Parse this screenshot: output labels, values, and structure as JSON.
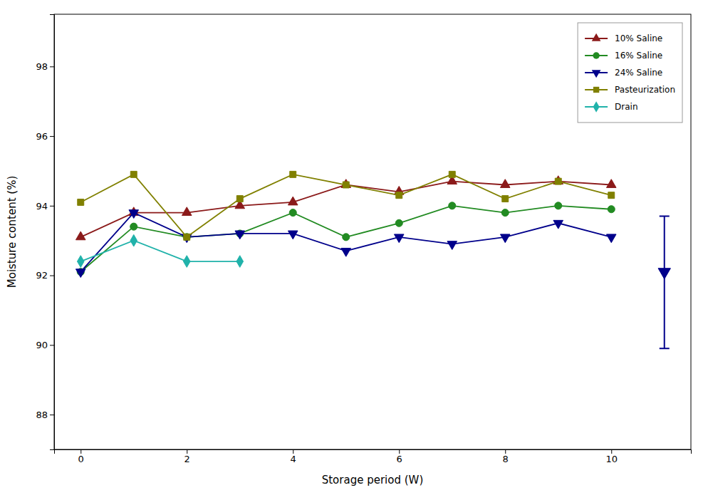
{
  "chart_data": {
    "type": "line",
    "x": [
      0,
      1,
      2,
      3,
      4,
      5,
      6,
      7,
      8,
      9,
      10
    ],
    "series": [
      {
        "name": "10% Saline",
        "color": "#8B1A1A",
        "marker": "triangle-up",
        "values": [
          93.1,
          93.8,
          93.8,
          94.0,
          94.1,
          94.6,
          94.4,
          94.7,
          94.6,
          94.7,
          94.6
        ]
      },
      {
        "name": "16% Saline",
        "color": "#228B22",
        "marker": "circle",
        "values": [
          92.1,
          93.4,
          93.1,
          93.2,
          93.8,
          93.1,
          93.5,
          94.0,
          93.8,
          94.0,
          93.9
        ]
      },
      {
        "name": "24% Saline",
        "color": "#00008B",
        "marker": "triangle-down",
        "values": [
          92.1,
          93.8,
          93.1,
          93.2,
          93.2,
          92.7,
          93.1,
          92.9,
          93.1,
          93.5,
          93.1
        ]
      },
      {
        "name": "Pasteurization",
        "color": "#808000",
        "marker": "square",
        "values": [
          94.1,
          94.9,
          93.1,
          94.2,
          94.9,
          94.6,
          94.3,
          94.9,
          94.2,
          94.7,
          94.3
        ]
      },
      {
        "name": "Drain",
        "color": "#20B2AA",
        "marker": "diamond",
        "x": [
          0,
          1,
          2,
          3
        ],
        "values": [
          92.4,
          93.0,
          92.4,
          92.4
        ]
      },
      {
        "type": "scatter",
        "color": "#00008B",
        "marker": "triangle-down",
        "x": [
          11
        ],
        "values": [
          92.1
        ],
        "error_lower": [
          2.2
        ],
        "error_upper": [
          1.6
        ]
      }
    ],
    "xlabel": "Storage period (W)",
    "ylabel": "Moisture content (%)",
    "xlim": [
      -0.5,
      11.5
    ],
    "xticks": [
      0,
      2,
      4,
      6,
      8,
      10
    ],
    "ylim": [
      87,
      99.5
    ],
    "yticks": [
      88,
      90,
      92,
      94,
      96,
      98
    ],
    "grid": false,
    "legend": "upper right"
  }
}
